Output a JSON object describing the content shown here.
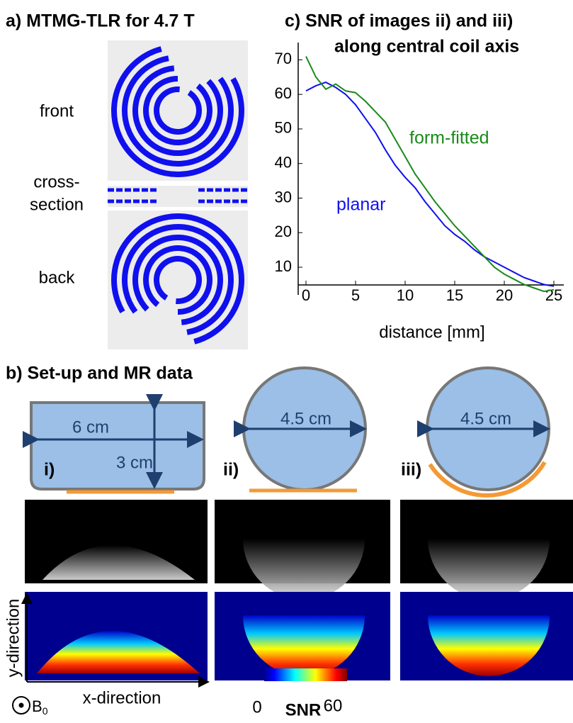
{
  "panel_a": {
    "title": "a) MTMG-TLR for 4.7 T",
    "front": "front",
    "cross_section_1": "cross-",
    "cross_section_2": "section",
    "back": "back"
  },
  "chart_data": {
    "type": "line",
    "title": [
      "c)  SNR of images ii) and iii)",
      "along central coil axis"
    ],
    "xlabel": "distance [mm]",
    "x": [
      0,
      1,
      2,
      3,
      4,
      5,
      6,
      7,
      8,
      9,
      10,
      11,
      12,
      13,
      14,
      15,
      16,
      17,
      18,
      19,
      20,
      21,
      22,
      23,
      24,
      25
    ],
    "series": [
      {
        "name": "planar",
        "color": "#1010ee",
        "values": [
          61,
          62.5,
          63.5,
          62,
          60,
          57,
          53,
          49,
          44,
          39.5,
          36,
          33,
          29,
          25.5,
          22,
          19.5,
          17.5,
          15,
          13,
          11.5,
          10,
          8.5,
          7,
          6,
          5,
          4.5
        ]
      },
      {
        "name": "form-fitted",
        "color": "#1a8a1a",
        "values": [
          71,
          65,
          61.5,
          63,
          61,
          60.5,
          58,
          55,
          52,
          47,
          42,
          37,
          33,
          29,
          25.5,
          22,
          19,
          16,
          13,
          10,
          8,
          6.5,
          5,
          4,
          3,
          3.5
        ]
      }
    ],
    "xlim": [
      -1,
      26
    ],
    "ylim": [
      2,
      75
    ],
    "xticks": [
      0,
      5,
      10,
      15,
      20,
      25
    ],
    "yticks": [
      10,
      20,
      30,
      40,
      50,
      60,
      70
    ]
  },
  "panel_b": {
    "title": "b) Set-up and MR data",
    "setups": [
      {
        "label": "i)",
        "width": "6 cm",
        "height": "3 cm"
      },
      {
        "label": "ii)",
        "diameter": "4.5 cm"
      },
      {
        "label": "iii)",
        "diameter": "4.5 cm"
      }
    ],
    "y_axis": "y-direction",
    "x_axis": "x-direction",
    "field": {
      "symbol": "B",
      "subscript": "0"
    },
    "colorbar": {
      "label": "SNR",
      "min": 0,
      "max": 60
    }
  }
}
